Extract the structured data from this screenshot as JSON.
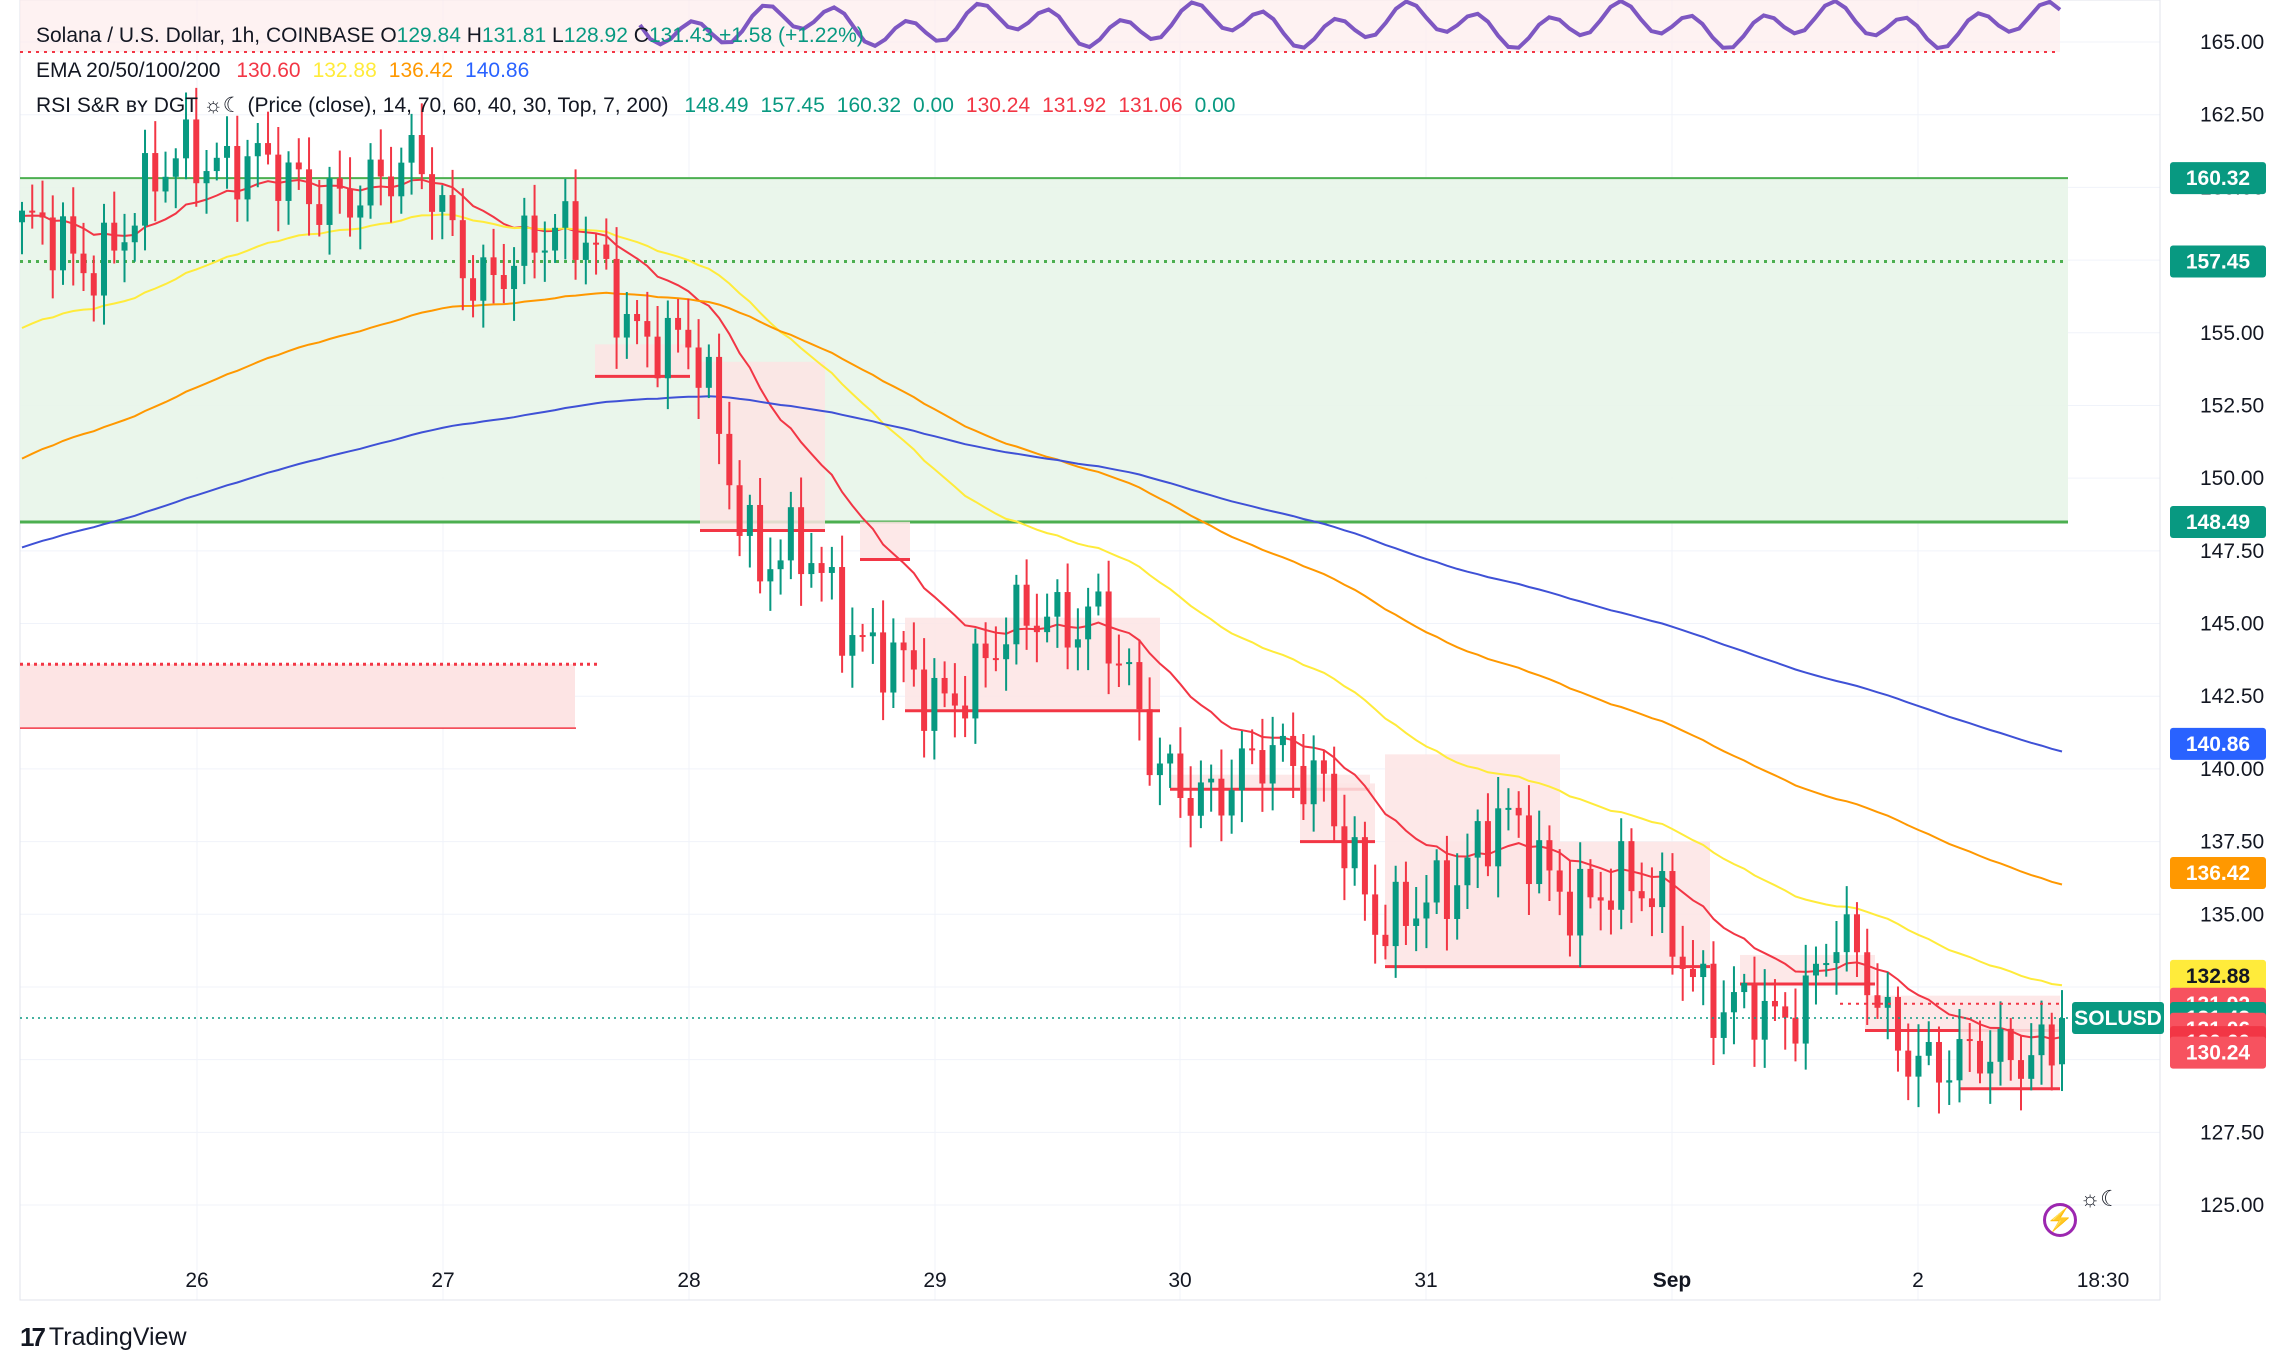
{
  "legend": {
    "symbol_title": "Solana / U.S. Dollar, 1h, COINBASE",
    "ohlc": [
      {
        "k": "O",
        "v": "129.84"
      },
      {
        "k": "H",
        "v": "131.81"
      },
      {
        "k": "L",
        "v": "128.92"
      },
      {
        "k": "C",
        "v": "131.43"
      }
    ],
    "change": "+1.58 (+1.22%)",
    "ema_label": "EMA 20/50/100/200",
    "ema_values": [
      {
        "v": "130.60",
        "color": "#f23645"
      },
      {
        "v": "132.88",
        "color": "#ffeb3b"
      },
      {
        "v": "136.42",
        "color": "#ff9800"
      },
      {
        "v": "140.86",
        "color": "#2962ff"
      }
    ],
    "rsi_label": "RSI S&R ʙʏ DGT ☼☾ (Price (close), 14, 70, 60, 40, 30, Top, 7, 200)",
    "rsi_values": [
      {
        "v": "148.49",
        "color": "#089981"
      },
      {
        "v": "157.45",
        "color": "#089981"
      },
      {
        "v": "160.32",
        "color": "#089981"
      },
      {
        "v": "0.00",
        "color": "#089981"
      },
      {
        "v": "130.24",
        "color": "#f23645"
      },
      {
        "v": "131.92",
        "color": "#f23645"
      },
      {
        "v": "131.06",
        "color": "#f23645"
      },
      {
        "v": "0.00",
        "color": "#089981"
      }
    ]
  },
  "price_axis_ticks": [
    "165.00",
    "162.50",
    "160.00",
    "157.50",
    "155.00",
    "152.50",
    "150.00",
    "147.50",
    "145.00",
    "142.50",
    "140.00",
    "137.50",
    "135.00",
    "132.50",
    "130.00",
    "127.50",
    "125.00"
  ],
  "price_tags": [
    {
      "v": "160.32",
      "price": 160.32,
      "bg": "#089981",
      "fg": "#ffffff"
    },
    {
      "v": "157.45",
      "price": 157.45,
      "bg": "#089981",
      "fg": "#ffffff"
    },
    {
      "v": "148.49",
      "price": 148.49,
      "bg": "#089981",
      "fg": "#ffffff"
    },
    {
      "v": "140.86",
      "price": 140.86,
      "bg": "#2962ff",
      "fg": "#ffffff"
    },
    {
      "v": "136.42",
      "price": 136.42,
      "bg": "#ff9800",
      "fg": "#ffffff"
    },
    {
      "v": "132.88",
      "price": 132.88,
      "bg": "#ffeb3b",
      "fg": "#131722"
    },
    {
      "v": "131.92",
      "price": 131.92,
      "bg": "#f7525f",
      "fg": "#ffffff"
    },
    {
      "v": "131.43",
      "price": 131.43,
      "bg": "#089981",
      "fg": "#ffffff",
      "symbol": "SOLUSD"
    },
    {
      "v": "131.06",
      "price": 131.06,
      "bg": "#f7525f",
      "fg": "#ffffff"
    },
    {
      "v": "130.60",
      "price": 130.6,
      "bg": "#f23645",
      "fg": "#ffffff"
    },
    {
      "v": "130.24",
      "price": 130.24,
      "bg": "#f7525f",
      "fg": "#ffffff"
    }
  ],
  "time_axis_ticks": [
    "26",
    "27",
    "28",
    "29",
    "30",
    "31",
    "Sep",
    "2",
    "18:30"
  ],
  "brand": "TradingView",
  "colors": {
    "up": "#089981",
    "down": "#f23645",
    "ema20": "#f23645",
    "ema50": "#ffeb3b",
    "ema100": "#ff9800",
    "ema200": "#3f51d6",
    "rsi": "#7e57c2"
  },
  "chart_data": {
    "type": "candlestick",
    "title": "Solana / U.S. Dollar, 1h, COINBASE",
    "timeframe": "1h",
    "x_range": [
      "Aug 25 ~09:00",
      "Sep 2 ~17:00"
    ],
    "x_ticks": [
      "26",
      "27",
      "28",
      "29",
      "30",
      "31",
      "Sep",
      "2",
      "18:30"
    ],
    "ylim": [
      123.5,
      166.5
    ],
    "last": {
      "open": 129.84,
      "high": 131.81,
      "low": 128.92,
      "close": 131.43
    },
    "close_path": [
      {
        "t": "25 09:00",
        "close": 158.7
      },
      {
        "t": "25 14:00",
        "close": 157.0
      },
      {
        "t": "25 20:00",
        "close": 159.6
      },
      {
        "t": "26 01:00",
        "close": 160.7
      },
      {
        "t": "26 04:00",
        "close": 161.6
      },
      {
        "t": "26 10:00",
        "close": 159.0
      },
      {
        "t": "26 16:00",
        "close": 160.6
      },
      {
        "t": "26 22:00",
        "close": 160.2
      },
      {
        "t": "27 06:00",
        "close": 157.3
      },
      {
        "t": "27 12:00",
        "close": 157.4
      },
      {
        "t": "27 18:00",
        "close": 159.0
      },
      {
        "t": "28 00:00",
        "close": 153.9
      },
      {
        "t": "28 06:00",
        "close": 154.6
      },
      {
        "t": "28 12:00",
        "close": 146.5
      },
      {
        "t": "28 18:00",
        "close": 147.4
      },
      {
        "t": "29 00:00",
        "close": 144.0
      },
      {
        "t": "29 06:00",
        "close": 142.1
      },
      {
        "t": "29 12:00",
        "close": 144.1
      },
      {
        "t": "29 18:00",
        "close": 144.8
      },
      {
        "t": "30 02:00",
        "close": 146.0
      },
      {
        "t": "30 06:00",
        "close": 139.4
      },
      {
        "t": "30 12:00",
        "close": 139.7
      },
      {
        "t": "30 18:00",
        "close": 139.9
      },
      {
        "t": "31 00:00",
        "close": 140.1
      },
      {
        "t": "31 02:00",
        "close": 133.5
      },
      {
        "t": "31 08:00",
        "close": 136.3
      },
      {
        "t": "31 14:00",
        "close": 137.9
      },
      {
        "t": "31 20:00",
        "close": 136.4
      },
      {
        "t": "Sep 01 02:00",
        "close": 135.7
      },
      {
        "t": "Sep 01 08:00",
        "close": 135.1
      },
      {
        "t": "Sep 01 14:00",
        "close": 131.7
      },
      {
        "t": "Sep 01 20:00",
        "close": 130.9
      },
      {
        "t": "02 02:00",
        "close": 134.9
      },
      {
        "t": "02 05:00",
        "close": 130.2
      },
      {
        "t": "02 10:00",
        "close": 130.5
      },
      {
        "t": "02 16:00",
        "close": 129.3
      },
      {
        "t": "02 17:00",
        "close": 131.43
      }
    ],
    "series": [
      {
        "name": "EMA 20",
        "last": 130.6
      },
      {
        "name": "EMA 50",
        "last": 132.88
      },
      {
        "name": "EMA 100",
        "last": 136.42
      },
      {
        "name": "EMA 200",
        "last": 140.86
      }
    ],
    "levels": {
      "support_zone": [
        148.49,
        160.32
      ],
      "support_mid": 157.45,
      "resistance_levels": [
        131.92,
        131.06,
        130.24
      ]
    },
    "grid": true
  }
}
